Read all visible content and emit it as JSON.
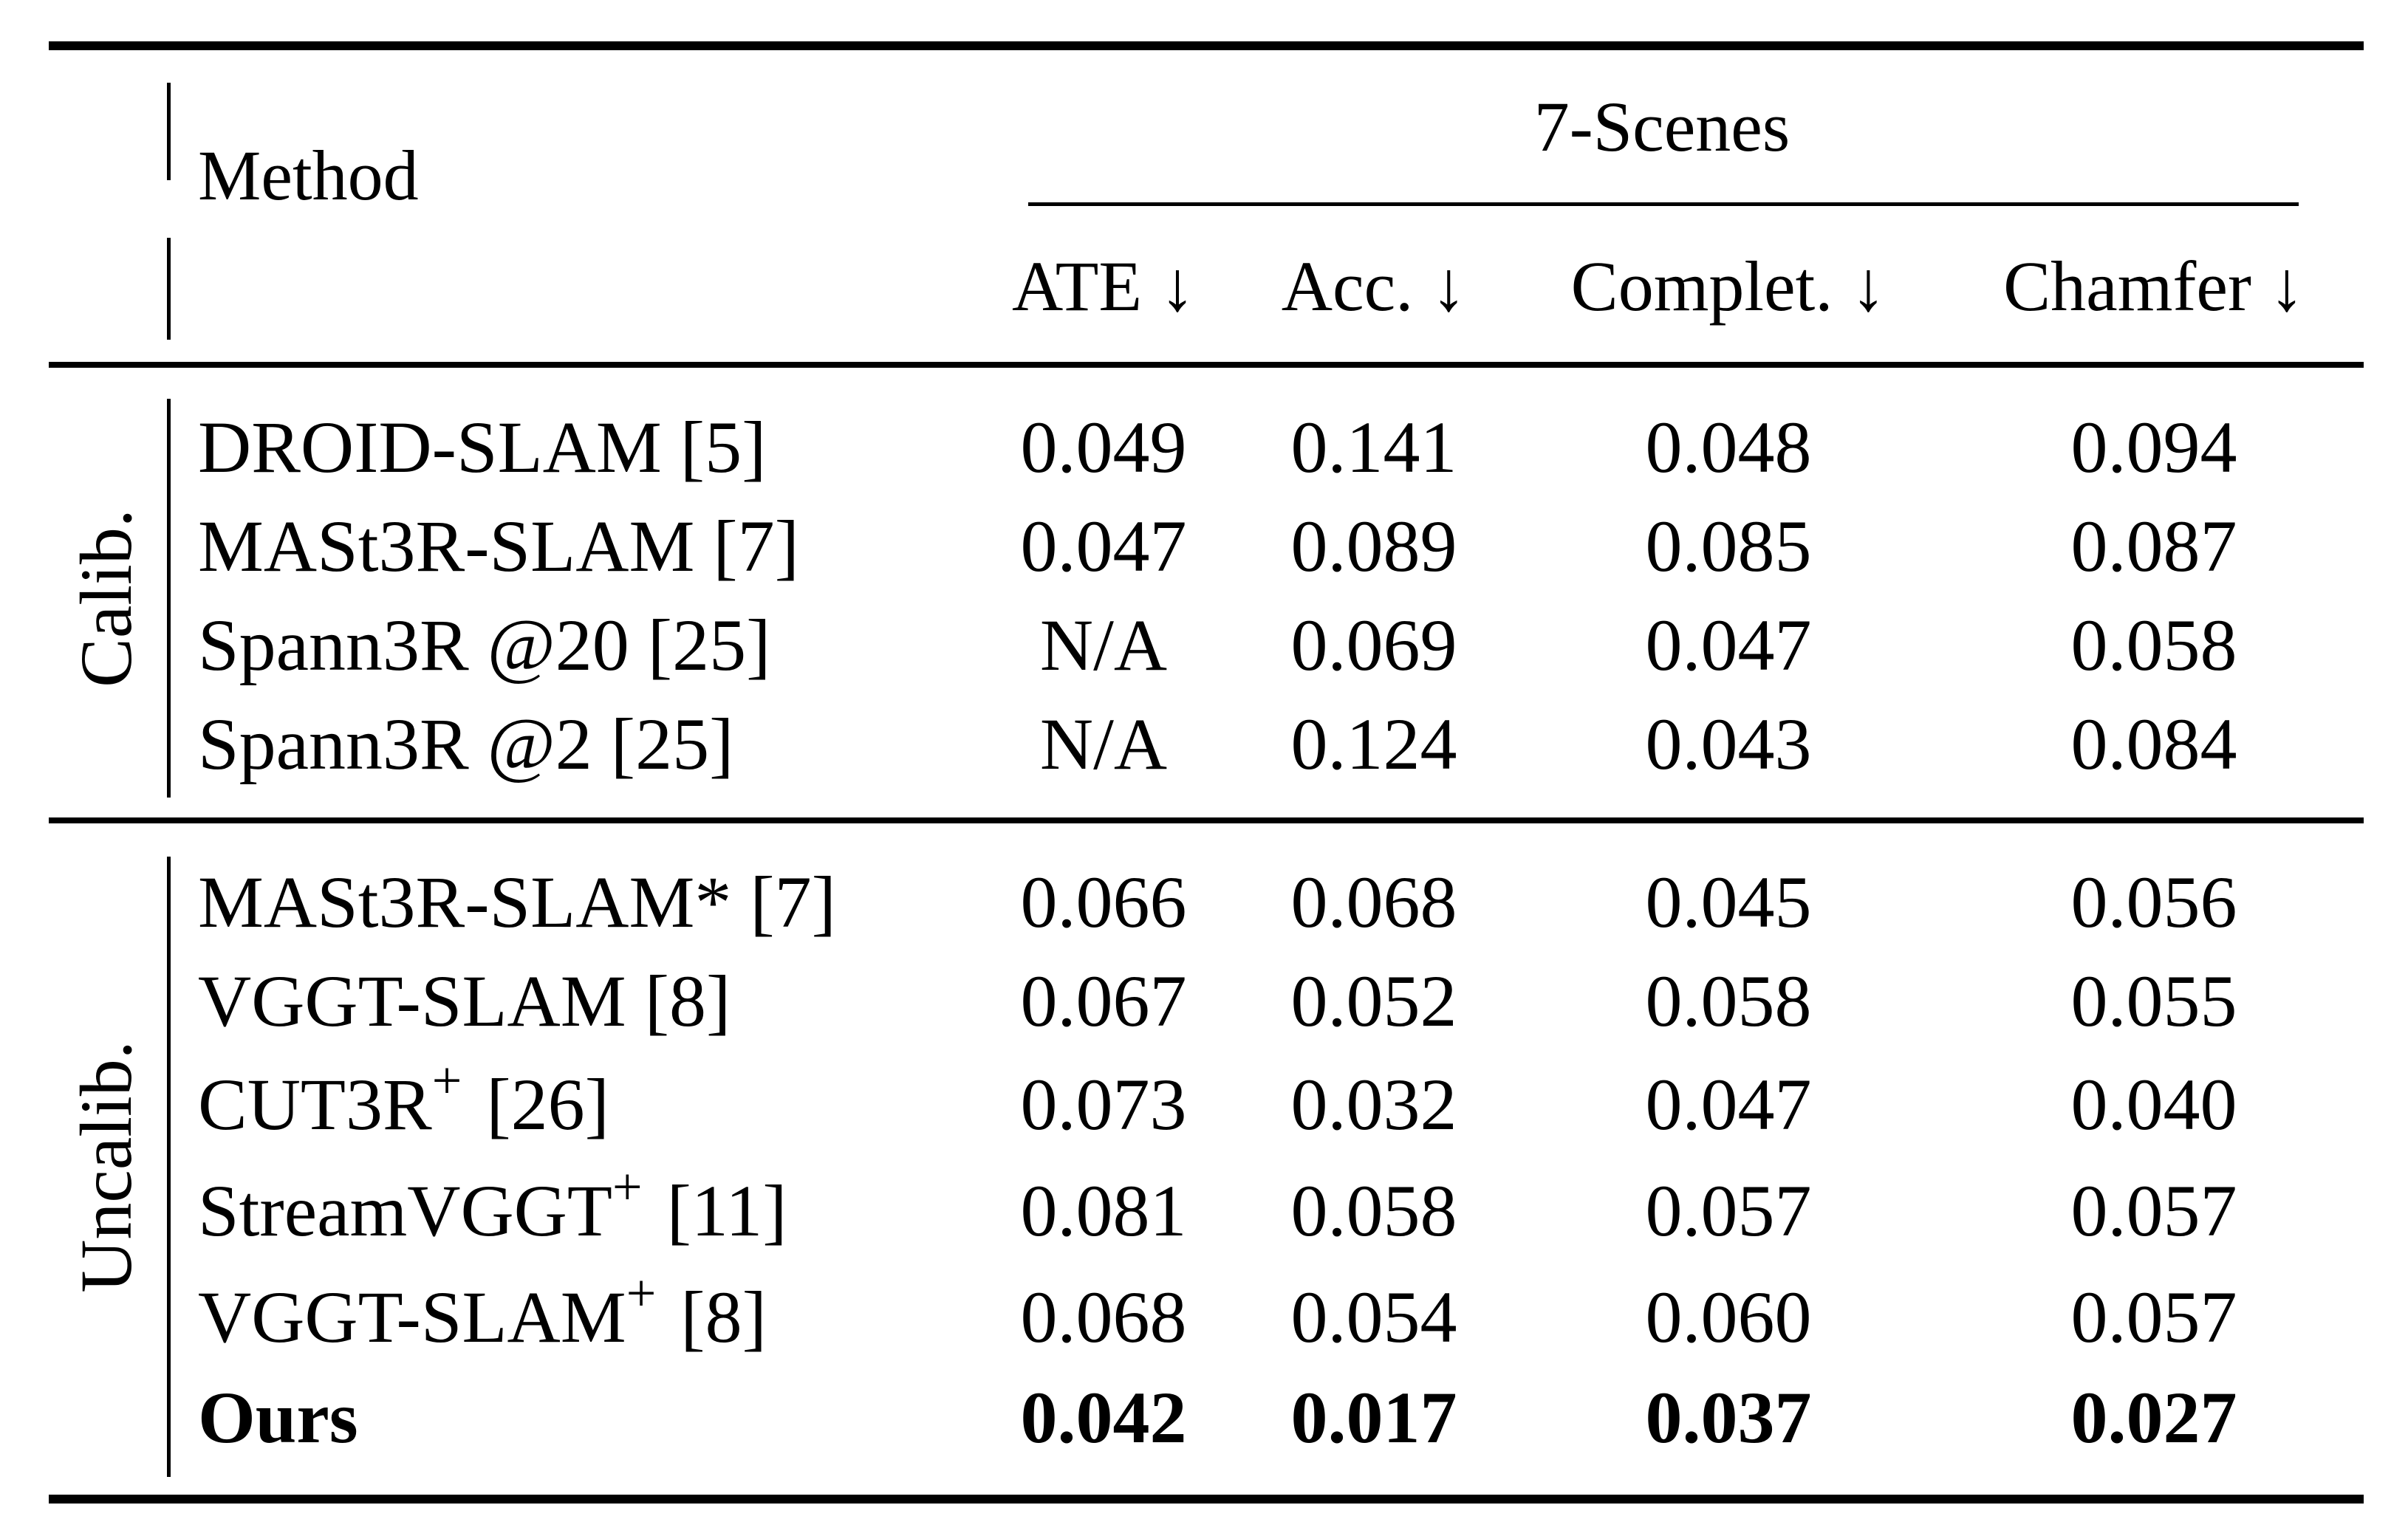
{
  "table": {
    "header": {
      "method": "Method",
      "dataset": "7-Scenes",
      "columns": [
        "ATE ↓",
        "Acc. ↓",
        "Complet. ↓",
        "Chamfer ↓"
      ]
    },
    "groups": [
      {
        "label": "Calib.",
        "rows": [
          {
            "method": "DROID-SLAM [5]",
            "plus": "",
            "ref": "",
            "values": [
              "0.049",
              "0.141",
              "0.048",
              "0.094"
            ],
            "bold": false
          },
          {
            "method": "MASt3R-SLAM [7]",
            "plus": "",
            "ref": "",
            "values": [
              "0.047",
              "0.089",
              "0.085",
              "0.087"
            ],
            "bold": false
          },
          {
            "method": "Spann3R @20 [25]",
            "plus": "",
            "ref": "",
            "values": [
              "N/A",
              "0.069",
              "0.047",
              "0.058"
            ],
            "bold": false
          },
          {
            "method": "Spann3R @2 [25]",
            "plus": "",
            "ref": "",
            "values": [
              "N/A",
              "0.124",
              "0.043",
              "0.084"
            ],
            "bold": false
          }
        ]
      },
      {
        "label": "Uncalib.",
        "rows": [
          {
            "method": "MASt3R-SLAM* [7]",
            "plus": "",
            "ref": "",
            "values": [
              "0.066",
              "0.068",
              "0.045",
              "0.056"
            ],
            "bold": false
          },
          {
            "method": "VGGT-SLAM [8]",
            "plus": "",
            "ref": "",
            "values": [
              "0.067",
              "0.052",
              "0.058",
              "0.055"
            ],
            "bold": false
          },
          {
            "method": "CUT3R",
            "plus": "+",
            "ref": "[26]",
            "values": [
              "0.073",
              "0.032",
              "0.047",
              "0.040"
            ],
            "bold": false
          },
          {
            "method": "StreamVGGT",
            "plus": "+",
            "ref": "[11]",
            "values": [
              "0.081",
              "0.058",
              "0.057",
              "0.057"
            ],
            "bold": false
          },
          {
            "method": "VGGT-SLAM",
            "plus": "+",
            "ref": "[8]",
            "values": [
              "0.068",
              "0.054",
              "0.060",
              "0.057"
            ],
            "bold": false
          },
          {
            "method": "Ours",
            "plus": "",
            "ref": "",
            "values": [
              "0.042",
              "0.017",
              "0.037",
              "0.027"
            ],
            "bold": true
          }
        ]
      }
    ]
  }
}
